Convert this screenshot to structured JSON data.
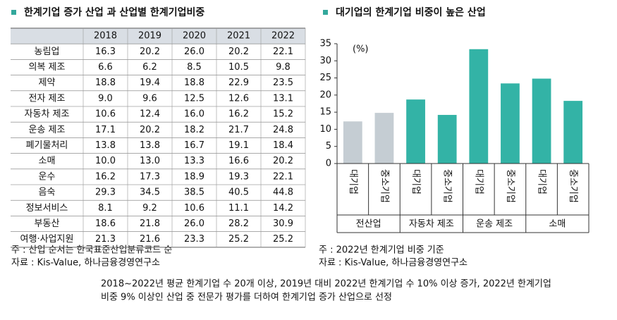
{
  "table": {
    "title": "한계기업 증가 산업 과 산업별 한계기업비중",
    "columns": [
      "2018",
      "2019",
      "2020",
      "2021",
      "2022"
    ],
    "rows": [
      {
        "label": "농림업",
        "cells": [
          "16.3",
          "20.2",
          "26.0",
          "20.2",
          "22.1"
        ]
      },
      {
        "label": "의복 제조",
        "cells": [
          "6.6",
          "6.2",
          "8.5",
          "10.5",
          "9.8"
        ]
      },
      {
        "label": "제약",
        "cells": [
          "18.8",
          "19.4",
          "18.8",
          "22.9",
          "23.5"
        ]
      },
      {
        "label": "전자 제조",
        "cells": [
          "9.0",
          "9.6",
          "12.5",
          "12.6",
          "13.1"
        ]
      },
      {
        "label": "자동차 제조",
        "cells": [
          "10.6",
          "12.4",
          "16.0",
          "16.2",
          "15.2"
        ]
      },
      {
        "label": "운송 제조",
        "cells": [
          "17.1",
          "20.2",
          "18.2",
          "21.7",
          "24.8"
        ]
      },
      {
        "label": "폐기물처리",
        "cells": [
          "13.8",
          "13.8",
          "16.7",
          "19.1",
          "18.4"
        ]
      },
      {
        "label": "소매",
        "cells": [
          "10.0",
          "13.0",
          "13.3",
          "16.6",
          "20.2"
        ]
      },
      {
        "label": "운수",
        "cells": [
          "16.2",
          "17.3",
          "18.9",
          "19.3",
          "22.1"
        ]
      },
      {
        "label": "음숙",
        "cells": [
          "29.3",
          "34.5",
          "38.5",
          "40.5",
          "44.8"
        ]
      },
      {
        "label": "정보서비스",
        "cells": [
          "8.1",
          "9.2",
          "10.6",
          "11.1",
          "14.2"
        ]
      },
      {
        "label": "부동산",
        "cells": [
          "18.6",
          "21.8",
          "26.0",
          "28.2",
          "30.9"
        ]
      },
      {
        "label": "여행·사업지원",
        "cells": [
          "21.3",
          "21.6",
          "23.3",
          "25.2",
          "25.2"
        ]
      }
    ],
    "notes": [
      "주 : 산업 순서는 한국표준산업분류코드 순",
      "자료 : Kis-Value, 하나금융경영연구소"
    ]
  },
  "chart_data": {
    "type": "bar",
    "title": "대기업의 한계기업 비중이 높은 산업",
    "y_unit": "(%)",
    "categories": [
      "대기업",
      "중소기업",
      "대기업",
      "중소기업",
      "대기업",
      "중소기업",
      "대기업",
      "중소기업"
    ],
    "groups": [
      "전산업",
      "자동차 제조",
      "운송 제조",
      "소매"
    ],
    "values": [
      12.3,
      14.8,
      18.7,
      14.2,
      33.4,
      23.4,
      24.8,
      18.3
    ],
    "colors": [
      "#c5cdd3",
      "#c5cdd3",
      "#33b3a6",
      "#33b3a6",
      "#33b3a6",
      "#33b3a6",
      "#33b3a6",
      "#33b3a6"
    ],
    "ylim": [
      0,
      35
    ],
    "yticks": [
      0,
      5,
      10,
      15,
      20,
      25,
      30,
      35
    ],
    "notes": [
      "주 : 2022년 한계기업 비중 기준",
      "자료 : Kis-Value, 하나금융경영연구소"
    ]
  },
  "footer": [
    "2018~2022년 평균 한계기업 수 20개 이상, 2019년 대비 2022년 한계기업 수 10% 이상 증가, 2022년 한계기업",
    "비중 9% 이상인 산업 중 전문가 평가를 더하여 한계기업 증가 산업으로 선정"
  ]
}
